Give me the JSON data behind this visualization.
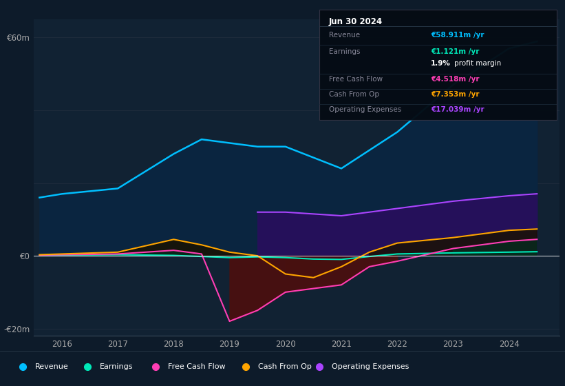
{
  "bg_color": "#0d1b2a",
  "plot_bg_color": "#112233",
  "years": [
    2015.6,
    2016,
    2017,
    2018,
    2018.5,
    2019,
    2019.5,
    2020,
    2020.5,
    2021,
    2021.5,
    2022,
    2023,
    2024,
    2024.5
  ],
  "revenue": [
    16,
    17,
    18.5,
    28,
    32,
    31,
    30,
    30,
    27,
    24,
    29,
    34,
    47,
    57,
    58.9
  ],
  "earnings": [
    0.1,
    0.2,
    0.3,
    0.1,
    -0.2,
    -0.5,
    -0.3,
    -0.5,
    -0.9,
    -1.0,
    -0.2,
    0.5,
    0.8,
    1.0,
    1.121
  ],
  "free_cash_flow": [
    0.2,
    0.3,
    0.5,
    1.5,
    0.5,
    -18,
    -15,
    -10,
    -9,
    -8,
    -3,
    -1.5,
    2.0,
    4.0,
    4.518
  ],
  "cash_from_op": [
    0.3,
    0.5,
    1.0,
    4.5,
    3.0,
    1.0,
    0.0,
    -5,
    -6,
    -3,
    1.0,
    3.5,
    5.0,
    7.0,
    7.353
  ],
  "op_expenses": [
    0,
    0,
    0,
    0,
    0,
    0,
    12,
    12,
    11.5,
    11,
    12,
    13,
    15,
    16.5,
    17.039
  ],
  "ylim": [
    -22,
    65
  ],
  "yticks": [
    -20,
    0,
    60
  ],
  "ytick_labels": [
    "-€20m",
    "€0",
    "€60m"
  ],
  "xlim": [
    2015.5,
    2024.9
  ],
  "xticks": [
    2016,
    2017,
    2018,
    2019,
    2020,
    2021,
    2022,
    2023,
    2024
  ],
  "colors": {
    "revenue": "#00bfff",
    "earnings": "#00e8b8",
    "free_cash_flow": "#ff3eb5",
    "cash_from_op": "#ffa500",
    "op_expenses": "#aa44ff"
  },
  "fill_revenue": "#0a2540",
  "fill_opex": "#25105a",
  "fill_fcf_neg": "#4a1010",
  "fill_cfo_pos": "#1a1500",
  "legend": [
    {
      "label": "Revenue",
      "color": "#00bfff"
    },
    {
      "label": "Earnings",
      "color": "#00e8b8"
    },
    {
      "label": "Free Cash Flow",
      "color": "#ff3eb5"
    },
    {
      "label": "Cash From Op",
      "color": "#ffa500"
    },
    {
      "label": "Operating Expenses",
      "color": "#aa44ff"
    }
  ],
  "info_box": {
    "date": "Jun 30 2024",
    "rows": [
      {
        "label": "Revenue",
        "value": "€58.911m /yr",
        "color": "#00bfff"
      },
      {
        "label": "Earnings",
        "value": "€1.121m /yr",
        "color": "#00e8b8"
      },
      {
        "label": "",
        "value": "1.9% profit margin",
        "color": "#ffffff"
      },
      {
        "label": "Free Cash Flow",
        "value": "€4.518m /yr",
        "color": "#ff3eb5"
      },
      {
        "label": "Cash From Op",
        "value": "€7.353m /yr",
        "color": "#ffa500"
      },
      {
        "label": "Operating Expenses",
        "value": "€17.039m /yr",
        "color": "#aa44ff"
      }
    ]
  }
}
